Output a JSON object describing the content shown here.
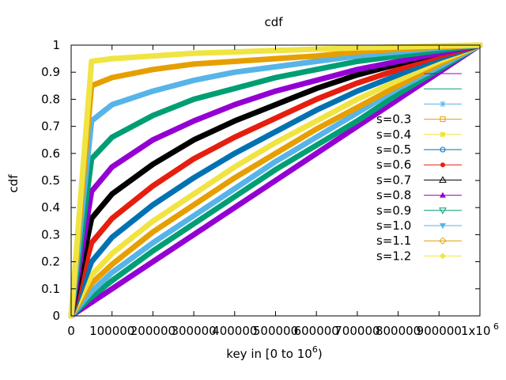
{
  "chart_data": {
    "type": "line",
    "title": "cdf",
    "xlabel": {
      "text": "key in [0 to 10",
      "sup": "6",
      "close": ")"
    },
    "ylabel": "cdf",
    "xlim": [
      0,
      1000000
    ],
    "ylim": [
      0,
      1
    ],
    "x_ticks": [
      {
        "value": 0,
        "label": "0"
      },
      {
        "value": 100000,
        "label": "100000"
      },
      {
        "value": 200000,
        "label": "200000"
      },
      {
        "value": 300000,
        "label": "300000"
      },
      {
        "value": 400000,
        "label": "400000"
      },
      {
        "value": 500000,
        "label": "500000"
      },
      {
        "value": 600000,
        "label": "600000"
      },
      {
        "value": 700000,
        "label": "700000"
      },
      {
        "value": 800000,
        "label": "800000"
      },
      {
        "value": 900000,
        "label": "900000"
      },
      {
        "value": 1000000,
        "label": "1x10",
        "sup": "6"
      }
    ],
    "y_ticks": [
      {
        "value": 0,
        "label": "0"
      },
      {
        "value": 0.1,
        "label": "0.1"
      },
      {
        "value": 0.2,
        "label": "0.2"
      },
      {
        "value": 0.3,
        "label": "0.3"
      },
      {
        "value": 0.4,
        "label": "0.4"
      },
      {
        "value": 0.5,
        "label": "0.5"
      },
      {
        "value": 0.6,
        "label": "0.6"
      },
      {
        "value": 0.7,
        "label": "0.7"
      },
      {
        "value": 0.8,
        "label": "0.8"
      },
      {
        "value": 0.9,
        "label": "0.9"
      },
      {
        "value": 1,
        "label": "1"
      }
    ],
    "grid": false,
    "legend_position": "right",
    "x": [
      0,
      50000,
      100000,
      200000,
      300000,
      400000,
      500000,
      600000,
      700000,
      800000,
      900000,
      1000000
    ],
    "series": [
      {
        "name": "",
        "color": "#9400d3",
        "marker": "plus",
        "values": [
          0,
          0.05,
          0.1,
          0.2,
          0.3,
          0.4,
          0.5,
          0.6,
          0.7,
          0.8,
          0.9,
          1.0
        ]
      },
      {
        "name": "",
        "color": "#009e73",
        "marker": "cross",
        "values": [
          0,
          0.07,
          0.13,
          0.24,
          0.34,
          0.44,
          0.54,
          0.63,
          0.72,
          0.82,
          0.91,
          1.0
        ]
      },
      {
        "name": "",
        "color": "#56b4e9",
        "marker": "star",
        "values": [
          0,
          0.09,
          0.16,
          0.27,
          0.37,
          0.47,
          0.57,
          0.66,
          0.75,
          0.84,
          0.92,
          1.0
        ]
      },
      {
        "name": "s=0.3",
        "color": "#e69f00",
        "marker": "box",
        "values": [
          0,
          0.12,
          0.19,
          0.31,
          0.41,
          0.51,
          0.6,
          0.69,
          0.77,
          0.85,
          0.93,
          1.0
        ]
      },
      {
        "name": "s=0.4",
        "color": "#f0e442",
        "marker": "fbox",
        "values": [
          0,
          0.15,
          0.23,
          0.35,
          0.45,
          0.55,
          0.64,
          0.72,
          0.8,
          0.87,
          0.94,
          1.0
        ]
      },
      {
        "name": "s=0.5",
        "color": "#0072b2",
        "marker": "circle",
        "values": [
          0,
          0.2,
          0.29,
          0.41,
          0.51,
          0.6,
          0.68,
          0.76,
          0.83,
          0.89,
          0.95,
          1.0
        ]
      },
      {
        "name": "s=0.6",
        "color": "#e51e10",
        "marker": "fcircle",
        "values": [
          0,
          0.27,
          0.36,
          0.48,
          0.58,
          0.66,
          0.73,
          0.8,
          0.86,
          0.91,
          0.96,
          1.0
        ]
      },
      {
        "name": "s=0.7",
        "color": "#000000",
        "marker": "triangle",
        "values": [
          0,
          0.36,
          0.45,
          0.56,
          0.65,
          0.72,
          0.78,
          0.84,
          0.89,
          0.93,
          0.97,
          1.0
        ]
      },
      {
        "name": "s=0.8",
        "color": "#9400d3",
        "marker": "ftriangle",
        "values": [
          0,
          0.46,
          0.55,
          0.65,
          0.72,
          0.78,
          0.83,
          0.87,
          0.91,
          0.94,
          0.97,
          1.0
        ]
      },
      {
        "name": "s=0.9",
        "color": "#009e73",
        "marker": "itriangle",
        "values": [
          0,
          0.58,
          0.66,
          0.74,
          0.8,
          0.84,
          0.88,
          0.91,
          0.94,
          0.96,
          0.98,
          1.0
        ]
      },
      {
        "name": "s=1.0",
        "color": "#56b4e9",
        "marker": "fitriangle",
        "values": [
          0,
          0.72,
          0.78,
          0.83,
          0.87,
          0.9,
          0.92,
          0.94,
          0.96,
          0.975,
          0.99,
          1.0
        ]
      },
      {
        "name": "s=1.1",
        "color": "#e69f00",
        "marker": "diamond",
        "values": [
          0,
          0.85,
          0.88,
          0.91,
          0.93,
          0.94,
          0.95,
          0.96,
          0.975,
          0.985,
          0.993,
          1.0
        ]
      },
      {
        "name": "s=1.2",
        "color": "#f0e442",
        "marker": "fdiamond",
        "values": [
          0,
          0.94,
          0.95,
          0.96,
          0.97,
          0.975,
          0.98,
          0.985,
          0.99,
          0.993,
          0.997,
          1.0
        ]
      }
    ]
  }
}
